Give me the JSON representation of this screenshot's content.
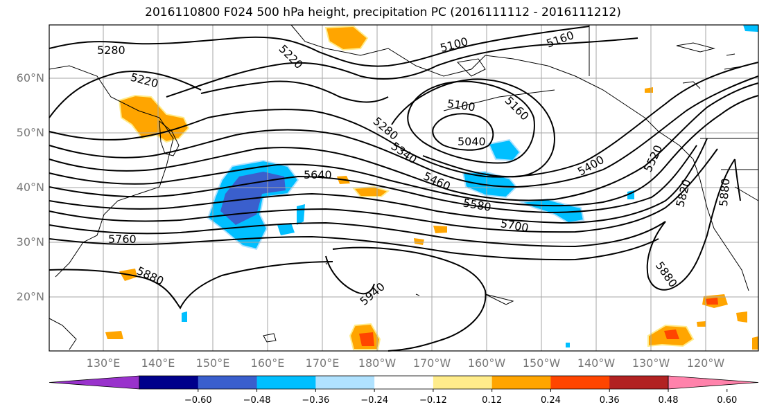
{
  "title": "2016110800 F024 500 hPa height, precipitation PC (2016111112 - 2016111212)",
  "lat_labels": [
    "60°N",
    "50°N",
    "40°N",
    "30°N",
    "20°N"
  ],
  "lon_labels": [
    "130°E",
    "140°E",
    "150°E",
    "160°E",
    "170°E",
    "180°W",
    "170°W",
    "160°W",
    "150°W",
    "140°W",
    "130°W",
    "120°W"
  ],
  "contour_labels": [
    "5280",
    "5220",
    "5220",
    "5100",
    "5160",
    "5100",
    "5160",
    "5280",
    "5340",
    "5040",
    "5460",
    "5640",
    "5580",
    "5400",
    "5520",
    "5820",
    "5880",
    "5700",
    "5760",
    "5880",
    "5940",
    "5880"
  ],
  "colorbar": {
    "ticks": [
      "−0.60",
      "−0.48",
      "−0.36",
      "−0.24",
      "−0.12",
      "0.12",
      "0.24",
      "0.36",
      "0.48",
      "0.60"
    ],
    "colors": [
      "#9932cc",
      "#00008b",
      "#3a5fcd",
      "#00bfff",
      "#b0e2ff",
      "#ffffff",
      "#ffec8b",
      "#ffa500",
      "#ff4500",
      "#b22222",
      "#ff82ab"
    ]
  }
}
